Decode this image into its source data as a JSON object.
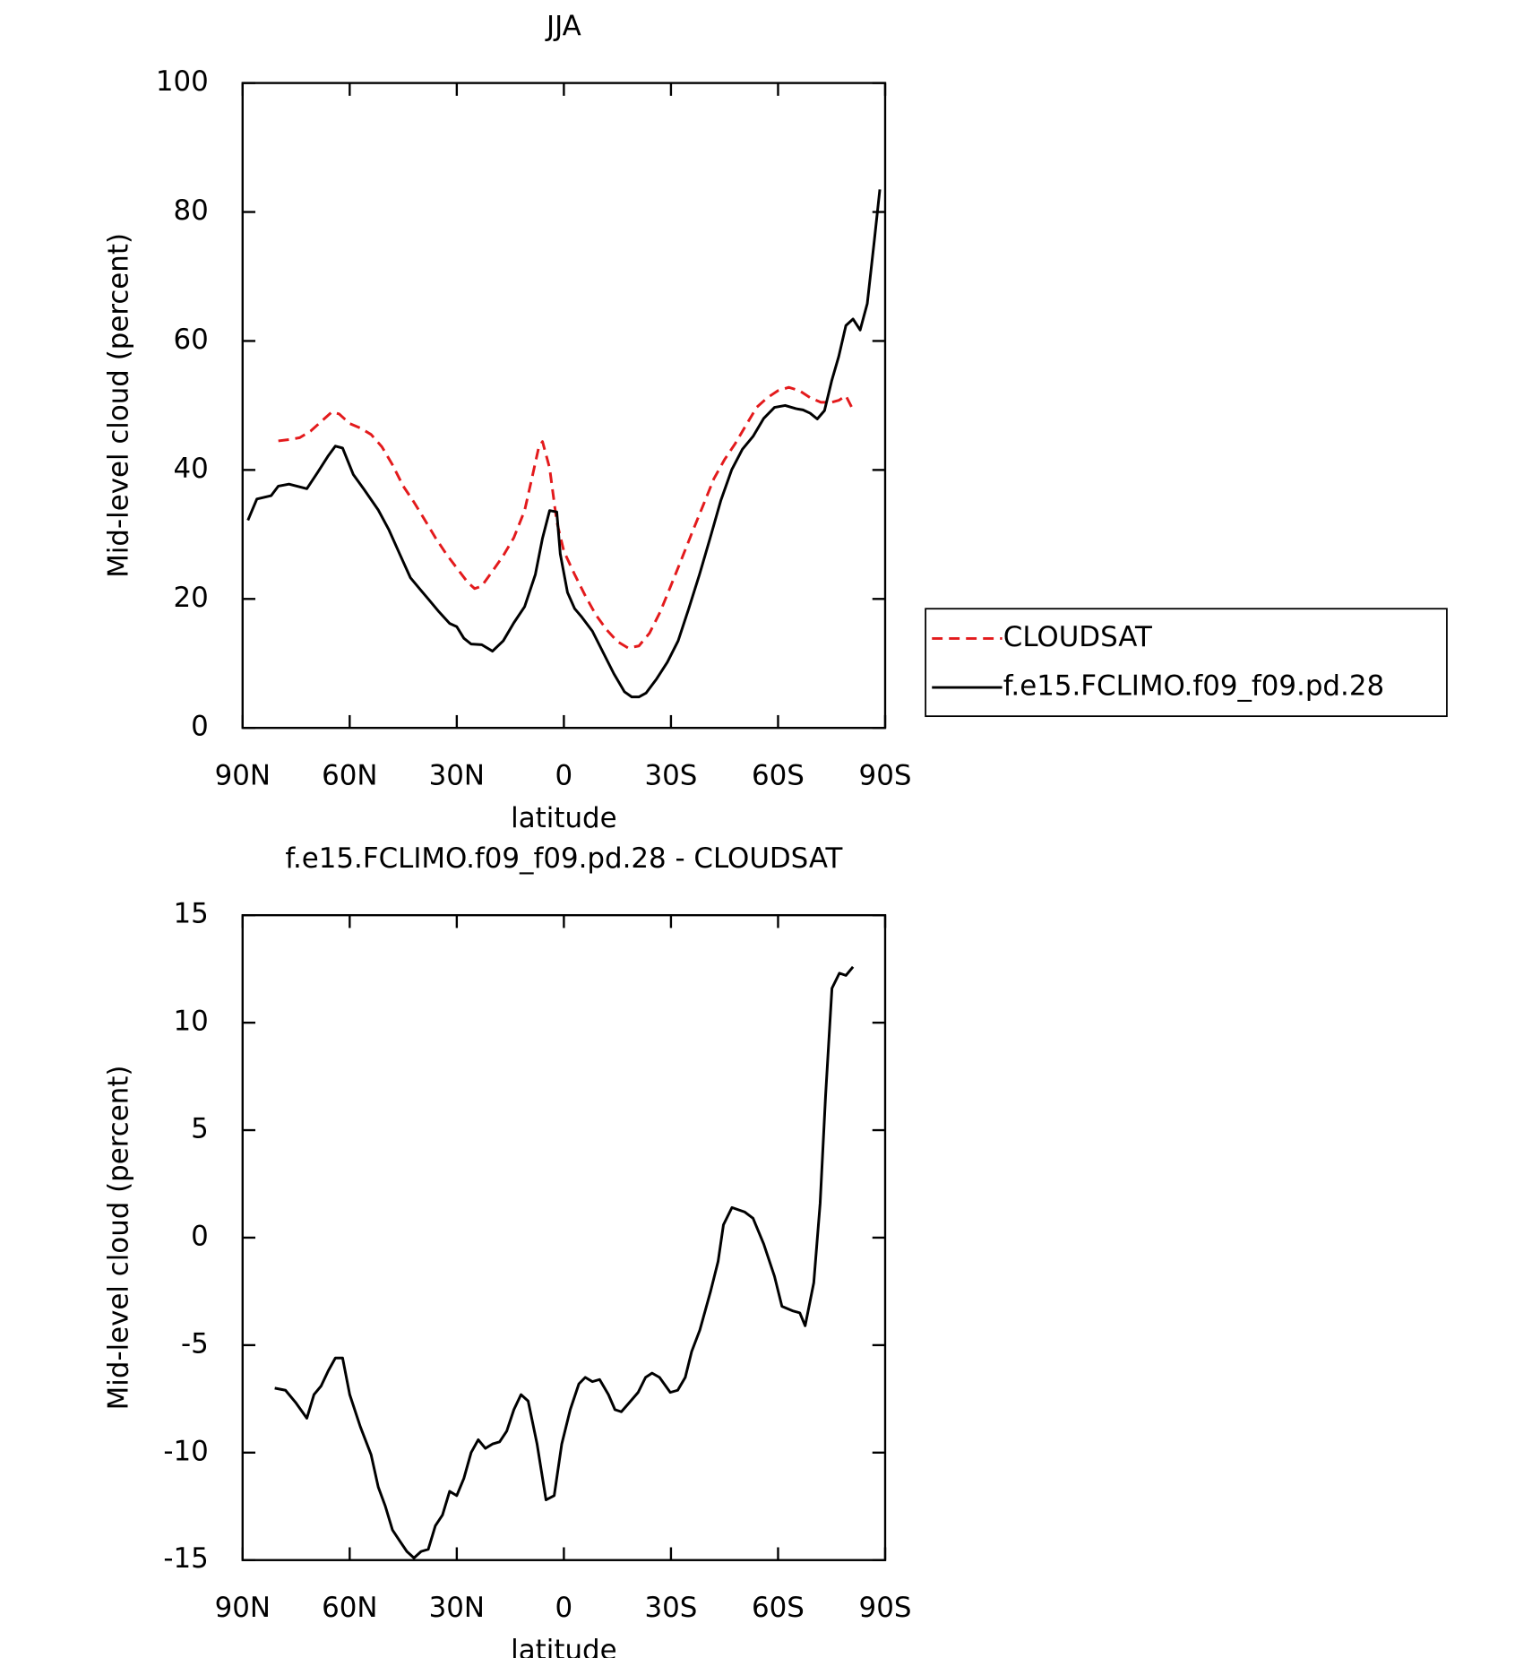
{
  "chart_data": [
    {
      "type": "line",
      "title": "JJA",
      "x_label": "latitude",
      "y_label": "Mid-level cloud (percent)",
      "xlim": [
        90,
        -90
      ],
      "xticks": [
        {
          "value": 90,
          "label": "90N"
        },
        {
          "value": 60,
          "label": "60N"
        },
        {
          "value": 30,
          "label": "30N"
        },
        0,
        {
          "value": -30,
          "label": "30S"
        },
        {
          "value": -60,
          "label": "60S"
        },
        {
          "value": -90,
          "label": "90S"
        }
      ],
      "ylim": [
        0,
        100
      ],
      "yticks": [
        0,
        20,
        40,
        60,
        80,
        100
      ],
      "legend": "right",
      "series": [
        {
          "name": "CLOUDSAT",
          "color": "#e31a1c",
          "dashed": true,
          "x": [
            80,
            77,
            74,
            71,
            68,
            65,
            63,
            60,
            57,
            54,
            51,
            48,
            45,
            42,
            39,
            36,
            33,
            30,
            27,
            25,
            23,
            20,
            17,
            14,
            11,
            9,
            7,
            6,
            4,
            2,
            0,
            -3,
            -6,
            -9,
            -12,
            -15,
            -18,
            -21,
            -24,
            -27,
            -30,
            -33,
            -36,
            -39,
            -42,
            -45,
            -48,
            -51,
            -54,
            -57,
            -60,
            -63,
            -66,
            -69,
            -72,
            -75,
            -77,
            -79,
            -81
          ],
          "values": [
            44.5,
            44.7,
            45.0,
            46.0,
            47.5,
            49.0,
            48.7,
            47.2,
            46.5,
            45.5,
            43.6,
            40.8,
            37.5,
            35.0,
            32.3,
            29.5,
            27.0,
            24.8,
            22.6,
            21.6,
            22.0,
            24.3,
            26.7,
            29.5,
            33.7,
            38.6,
            43.6,
            44.4,
            40.3,
            32.0,
            27.4,
            23.8,
            20.5,
            17.5,
            15.2,
            13.4,
            12.4,
            12.7,
            14.7,
            18.0,
            22.1,
            26.2,
            30.4,
            34.5,
            38.6,
            41.6,
            44.1,
            46.9,
            49.7,
            51.2,
            52.3,
            52.8,
            52.3,
            51.2,
            50.5,
            50.5,
            50.8,
            51.5,
            49.3
          ]
        },
        {
          "name": "f.e15.FCLIMO.f09_f09.pd.28",
          "color": "#000000",
          "dashed": false,
          "x": [
            88.5,
            86,
            82,
            80,
            77,
            72,
            69,
            66,
            64,
            62,
            59,
            56,
            52,
            49,
            46,
            43,
            40,
            38,
            35,
            32,
            30,
            28,
            26,
            23,
            20,
            17,
            14,
            11,
            8,
            6,
            4,
            2,
            1,
            -1,
            -3,
            -5,
            -8,
            -11,
            -14,
            -17,
            -19,
            -21,
            -23,
            -26,
            -29,
            -32,
            -35,
            -38,
            -41,
            -44,
            -47,
            -50,
            -53,
            -56,
            -59,
            -62,
            -65,
            -67,
            -69,
            -71,
            -73,
            -75,
            -77,
            -79,
            -81,
            -83,
            -85,
            -87,
            -88.5
          ],
          "values": [
            32.2,
            35.5,
            36.0,
            37.5,
            37.8,
            37.1,
            39.6,
            42.2,
            43.7,
            43.4,
            39.3,
            37.0,
            33.8,
            30.7,
            27.0,
            23.3,
            21.3,
            20.0,
            18.0,
            16.2,
            15.7,
            13.9,
            13.0,
            12.9,
            11.9,
            13.5,
            16.3,
            18.8,
            23.8,
            29.4,
            33.7,
            33.5,
            27.0,
            21.0,
            18.5,
            17.2,
            15.0,
            11.7,
            8.4,
            5.6,
            4.8,
            4.8,
            5.4,
            7.6,
            10.2,
            13.5,
            18.5,
            23.8,
            29.5,
            35.3,
            40.0,
            43.2,
            45.2,
            48.0,
            49.7,
            50.0,
            49.5,
            49.3,
            48.8,
            47.9,
            49.2,
            53.8,
            57.6,
            62.4,
            63.4,
            61.7,
            65.8,
            75.7,
            83.5
          ]
        }
      ]
    },
    {
      "type": "line",
      "title": "f.e15.FCLIMO.f09_f09.pd.28 - CLOUDSAT",
      "x_label": "latitude",
      "y_label": "Mid-level cloud (percent)",
      "xlim": [
        90,
        -90
      ],
      "xticks": [
        {
          "value": 90,
          "label": "90N"
        },
        {
          "value": 60,
          "label": "60N"
        },
        {
          "value": 30,
          "label": "30N"
        },
        0,
        {
          "value": -30,
          "label": "30S"
        },
        {
          "value": -60,
          "label": "60S"
        },
        {
          "value": -90,
          "label": "90S"
        }
      ],
      "ylim": [
        -15,
        15
      ],
      "yticks": [
        -15,
        -10,
        -5,
        0,
        5,
        10,
        15
      ],
      "series": [
        {
          "color": "#000000",
          "dashed": false,
          "x": [
            81,
            78,
            75,
            72,
            70,
            68,
            66,
            64,
            62,
            60,
            57,
            54,
            52,
            50,
            48,
            46,
            44,
            42,
            40,
            38,
            36,
            34,
            32,
            30,
            28,
            26,
            24,
            22,
            20,
            18,
            16,
            14,
            12,
            10,
            7.5,
            5,
            2.7,
            0.6,
            -1.8,
            -4.2,
            -6,
            -8,
            -10,
            -12.5,
            -14.3,
            -16.1,
            -18.2,
            -20.8,
            -22.9,
            -24.7,
            -26.8,
            -29.8,
            -31.9,
            -34,
            -35.8,
            -38.1,
            -41.1,
            -43.2,
            -44.7,
            -47.1,
            -50.6,
            -53,
            -56,
            -59,
            -61.1,
            -64,
            -66.1,
            -67.6,
            -70,
            -71.8,
            -73.3,
            -75.1,
            -77.2,
            -79,
            -81
          ],
          "values": [
            -7.0,
            -7.1,
            -7.7,
            -8.4,
            -7.3,
            -6.9,
            -6.2,
            -5.6,
            -5.6,
            -7.3,
            -8.8,
            -10.1,
            -11.6,
            -12.5,
            -13.6,
            -14.1,
            -14.6,
            -14.9,
            -14.6,
            -14.5,
            -13.4,
            -12.9,
            -11.8,
            -12.0,
            -11.2,
            -10.0,
            -9.4,
            -9.8,
            -9.6,
            -9.5,
            -9.0,
            -8.0,
            -7.3,
            -7.6,
            -9.6,
            -12.2,
            -12.0,
            -9.6,
            -8.0,
            -6.8,
            -6.5,
            -6.7,
            -6.6,
            -7.3,
            -8.0,
            -8.1,
            -7.7,
            -7.2,
            -6.5,
            -6.3,
            -6.5,
            -7.2,
            -7.1,
            -6.5,
            -5.3,
            -4.3,
            -2.5,
            -1.1,
            0.6,
            1.4,
            1.2,
            0.9,
            -0.3,
            -1.8,
            -3.2,
            -3.4,
            -3.5,
            -4.1,
            -2.1,
            1.6,
            6.6,
            11.6,
            12.3,
            12.2,
            12.6
          ]
        }
      ]
    }
  ]
}
